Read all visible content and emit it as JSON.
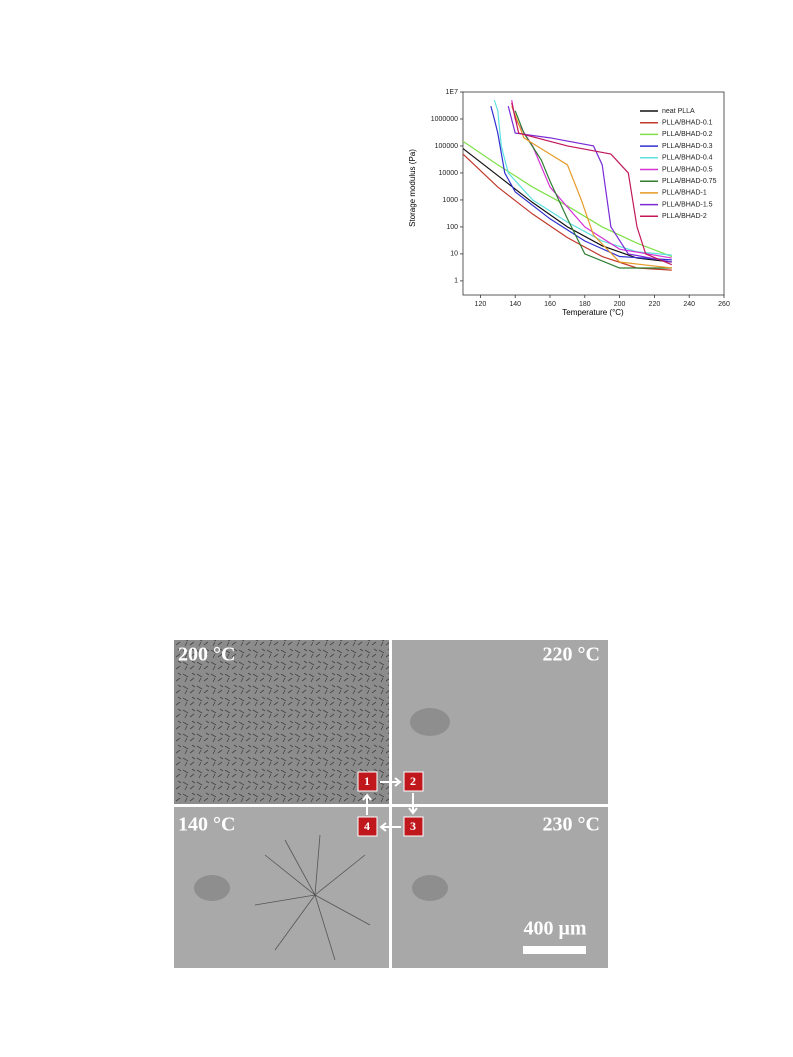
{
  "chart_data": {
    "type": "line",
    "yscale": "log",
    "xlabel": "Temperature (°C)",
    "ylabel": "Storage modulus (Pa)",
    "xlim": [
      110,
      260
    ],
    "xticks": [
      120,
      140,
      160,
      180,
      200,
      220,
      240,
      260
    ],
    "ylim": [
      0.3,
      10000000
    ],
    "yticks": [
      {
        "value": 10000000,
        "label": "1E7"
      },
      1000000,
      100000,
      10000,
      1000,
      100,
      10,
      1
    ],
    "legend": "upper right",
    "series": [
      {
        "name": "neat PLLA",
        "color": "#111111",
        "x": [
          110,
          130,
          150,
          170,
          190,
          210,
          230
        ],
        "values": [
          80000,
          8000,
          800,
          100,
          20,
          7,
          5
        ]
      },
      {
        "name": "PLLA/BHAD-0.1",
        "color": "#c0392b",
        "x": [
          110,
          130,
          150,
          170,
          190,
          210,
          230
        ],
        "values": [
          50000,
          3000,
          300,
          40,
          8,
          3,
          2.5
        ]
      },
      {
        "name": "PLLA/BHAD-0.2",
        "color": "#7fe04a",
        "x": [
          110,
          130,
          150,
          170,
          190,
          210,
          230
        ],
        "values": [
          150000,
          20000,
          3000,
          600,
          100,
          25,
          8
        ]
      },
      {
        "name": "PLLA/BHAD-0.3",
        "color": "#3030d0",
        "x": [
          126,
          128,
          130,
          134,
          140,
          160,
          180,
          200,
          230
        ],
        "values": [
          3000000,
          1000000,
          300000,
          10000,
          2000,
          200,
          30,
          8,
          6
        ]
      },
      {
        "name": "PLLA/BHAD-0.4",
        "color": "#5ee0e0",
        "x": [
          128,
          130,
          132,
          136,
          150,
          170,
          190,
          210,
          230
        ],
        "values": [
          5000000,
          2000000,
          100000,
          10000,
          1000,
          150,
          30,
          12,
          9
        ]
      },
      {
        "name": "PLLA/BHAD-0.5",
        "color": "#d633d6",
        "x": [
          138,
          140,
          150,
          160,
          180,
          200,
          230
        ],
        "values": [
          5000000,
          1000000,
          100000,
          3000,
          100,
          15,
          7
        ]
      },
      {
        "name": "PLLA/BHAD-0.75",
        "color": "#2e7d32",
        "x": [
          140,
          145,
          155,
          160,
          170,
          180,
          200,
          230
        ],
        "values": [
          2000000,
          300000,
          30000,
          5000,
          200,
          10,
          3,
          3
        ]
      },
      {
        "name": "PLLA/BHAD-1",
        "color": "#e69a28",
        "x": [
          138,
          145,
          160,
          170,
          178,
          185,
          200,
          230
        ],
        "values": [
          3000000,
          200000,
          50000,
          20000,
          1000,
          50,
          5,
          3
        ]
      },
      {
        "name": "PLLA/BHAD-1.5",
        "color": "#7b2ad6",
        "x": [
          136,
          140,
          160,
          185,
          190,
          195,
          205,
          230
        ],
        "values": [
          3000000,
          300000,
          200000,
          100000,
          20000,
          100,
          10,
          5
        ]
      },
      {
        "name": "PLLA/BHAD-2",
        "color": "#c2185b",
        "x": [
          138,
          142,
          170,
          195,
          205,
          210,
          215,
          230
        ],
        "values": [
          4000000,
          300000,
          100000,
          50000,
          10000,
          100,
          10,
          4
        ]
      }
    ]
  },
  "figure": {
    "panels": [
      {
        "label": "200 °C"
      },
      {
        "label": "220 °C"
      },
      {
        "label": "140 °C"
      },
      {
        "label": "230 °C"
      }
    ],
    "steps": [
      "1",
      "2",
      "3",
      "4"
    ],
    "scale_bar": "400 μm"
  }
}
